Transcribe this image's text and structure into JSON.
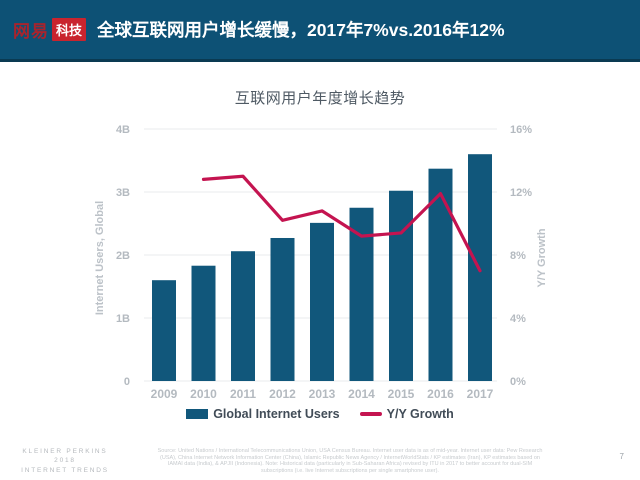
{
  "header": {
    "logo": {
      "netease": "网易",
      "tech": "科技"
    },
    "title": "全球互联网用户增长缓慢，2017年7%vs.2016年12%"
  },
  "chart_data": {
    "type": "bar+line",
    "title": "互联网用户年度增长趋势",
    "categories": [
      "2009",
      "2010",
      "2011",
      "2012",
      "2013",
      "2014",
      "2015",
      "2016",
      "2017"
    ],
    "series": [
      {
        "name": "Global Internet Users",
        "type": "bar",
        "axis": "left",
        "unit": "B",
        "color": "#11577b",
        "values": [
          1.6,
          1.83,
          2.06,
          2.27,
          2.51,
          2.75,
          3.02,
          3.37,
          3.6
        ]
      },
      {
        "name": "Y/Y Growth",
        "type": "line",
        "axis": "right",
        "unit": "%",
        "color": "#c41450",
        "values": [
          null,
          12.8,
          13.0,
          10.2,
          10.8,
          9.2,
          9.4,
          11.9,
          7.0
        ]
      }
    ],
    "left_axis": {
      "label": "Internet Users, Global",
      "min": 0,
      "max": 4,
      "tick_values": [
        0,
        1,
        2,
        3,
        4
      ],
      "ticks": [
        "0",
        "1B",
        "2B",
        "3B",
        "4B"
      ]
    },
    "right_axis": {
      "label": "Y/Y Growth",
      "min": 0,
      "max": 16,
      "tick_values": [
        0,
        4,
        8,
        12,
        16
      ],
      "ticks": [
        "0%",
        "4%",
        "8%",
        "12%",
        "16%"
      ]
    },
    "grid": true,
    "legend_position": "bottom"
  },
  "footer": {
    "brand_line1": "KLEINER PERKINS",
    "brand_line2": "2018",
    "brand_line3": "INTERNET TRENDS",
    "source": "Source: United Nations / International Telecommunications Union, USA Census Bureau. Internet user data is as of mid-year. Internet user data: Pew Research (USA), China Internet Network Information Center (China), Islamic Republic News Agency / InternetWorldStats / KP estimates (Iran), KP estimates based on IAMAI data (India), & APJII (Indonesia). Note: Historical data (particularly in Sub-Saharan Africa) revised by ITU in 2017 to better account for dual-SIM subscriptions (i.e. live Internet subscriptions per single smartphone user).",
    "page_number": "7"
  },
  "colors": {
    "banner_background": "#0d5175",
    "banner_border": "#0a3a52",
    "logo_red": "#c9242e",
    "bar": "#11577b",
    "line": "#c41450",
    "gridline": "#e9ebee",
    "tick_text": "#b4bac0",
    "title_text": "#4f5a64",
    "legend_text": "#414c57"
  }
}
